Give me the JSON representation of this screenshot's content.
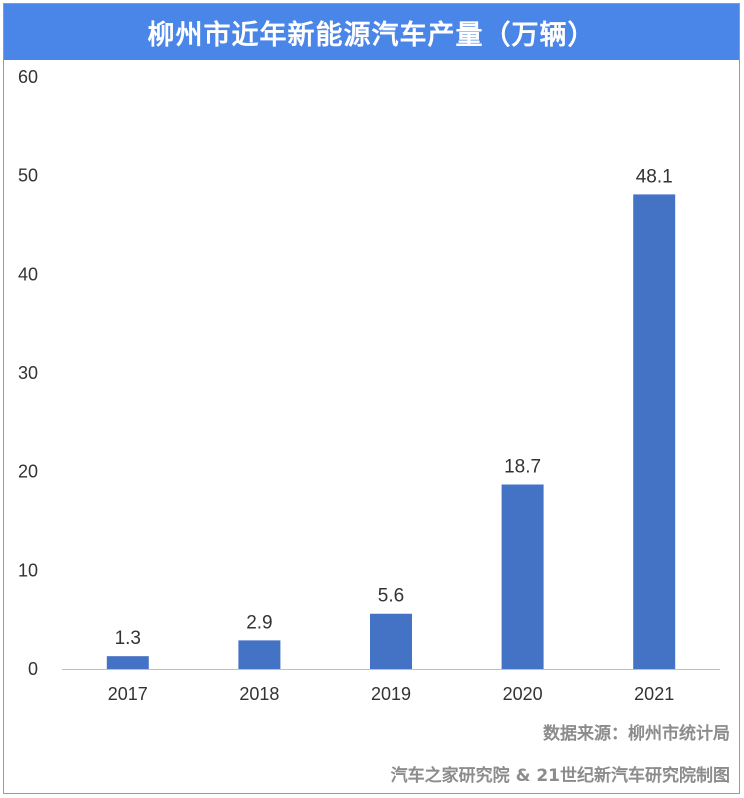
{
  "chart_data": {
    "type": "bar",
    "title": "柳州市近年新能源汽车产量（万辆）",
    "categories": [
      "2017",
      "2018",
      "2019",
      "2020",
      "2021"
    ],
    "values": [
      1.3,
      2.9,
      5.6,
      18.7,
      48.1
    ],
    "data_labels": [
      "1.3",
      "2.9",
      "5.6",
      "18.7",
      "48.1"
    ],
    "yticks": [
      "0",
      "10",
      "20",
      "30",
      "40",
      "50",
      "60"
    ],
    "ylim": [
      0,
      60
    ],
    "grid": false,
    "legend": "none",
    "bar_color": "#4472c4"
  },
  "footer": {
    "source": "数据来源：柳州市统计局",
    "credit": "汽车之家研究院 & 21世纪新汽车研究院制图"
  },
  "colors": {
    "title_bg": "#4a86e8",
    "bar": "#4472c4",
    "axis": "#bfbfbf",
    "footer_text": "#8c8c8c"
  }
}
